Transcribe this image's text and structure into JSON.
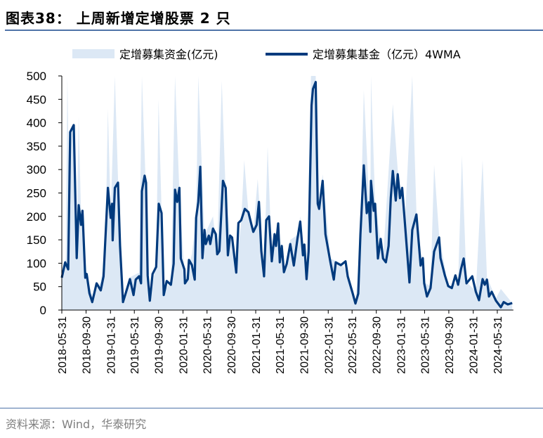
{
  "title": "图表38：  上周新增定增股票 2 只",
  "source": "资料来源：Wind，华泰研究",
  "chart_data": {
    "type": "area+line",
    "title": "上周新增定增股票 2 只",
    "xlabel": "",
    "ylabel": "",
    "ylim": [
      0,
      500
    ],
    "yticks": [
      0,
      50,
      100,
      150,
      200,
      250,
      300,
      350,
      400,
      450,
      500
    ],
    "xlim": [
      "2018-05-31",
      "2024-08-20"
    ],
    "xticks": [
      "2018-05-31",
      "2018-09-30",
      "2019-01-31",
      "2019-05-31",
      "2019-09-30",
      "2020-01-31",
      "2020-05-31",
      "2020-09-30",
      "2021-01-31",
      "2021-05-31",
      "2021-09-30",
      "2022-01-31",
      "2022-05-31",
      "2022-09-30",
      "2023-01-31",
      "2023-05-31",
      "2023-09-30",
      "2024-01-31",
      "2024-05-31"
    ],
    "grid": false,
    "legend_position": "top",
    "series": [
      {
        "name": "定增募集资金(亿元)",
        "type": "area",
        "color": "#dce8f5",
        "points": [
          [
            "2018-05-31",
            60
          ],
          [
            "2018-06-20",
            110
          ],
          [
            "2018-06-28",
            500
          ],
          [
            "2018-07-05",
            300
          ],
          [
            "2018-07-25",
            400
          ],
          [
            "2018-08-14",
            150
          ],
          [
            "2018-08-24",
            415
          ],
          [
            "2018-09-05",
            200
          ],
          [
            "2018-09-26",
            90
          ],
          [
            "2018-10-31",
            30
          ],
          [
            "2018-12-13",
            60
          ],
          [
            "2019-01-05",
            120
          ],
          [
            "2019-01-18",
            430
          ],
          [
            "2019-02-01",
            200
          ],
          [
            "2019-02-22",
            500
          ],
          [
            "2019-03-10",
            280
          ],
          [
            "2019-04-04",
            20
          ],
          [
            "2019-05-09",
            70
          ],
          [
            "2019-06-24",
            80
          ],
          [
            "2019-07-08",
            500
          ],
          [
            "2019-07-29",
            250
          ],
          [
            "2019-08-17",
            20
          ],
          [
            "2019-09-18",
            100
          ],
          [
            "2019-09-30",
            450
          ],
          [
            "2019-10-26",
            40
          ],
          [
            "2019-12-01",
            60
          ],
          [
            "2019-12-22",
            500
          ],
          [
            "2020-01-13",
            250
          ],
          [
            "2020-02-10",
            60
          ],
          [
            "2020-03-16",
            120
          ],
          [
            "2020-04-06",
            200
          ],
          [
            "2020-04-17",
            500
          ],
          [
            "2020-05-18",
            160
          ],
          [
            "2020-06-30",
            200
          ],
          [
            "2020-07-21",
            120
          ],
          [
            "2020-08-13",
            490
          ],
          [
            "2020-09-02",
            250
          ],
          [
            "2020-09-24",
            160
          ],
          [
            "2020-10-25",
            90
          ],
          [
            "2020-11-19",
            190
          ],
          [
            "2020-12-04",
            320
          ],
          [
            "2020-12-25",
            210
          ],
          [
            "2021-01-19",
            170
          ],
          [
            "2021-02-10",
            280
          ],
          [
            "2021-03-14",
            80
          ],
          [
            "2021-04-01",
            350
          ],
          [
            "2021-04-22",
            110
          ],
          [
            "2021-05-24",
            190
          ],
          [
            "2021-06-22",
            80
          ],
          [
            "2021-07-24",
            150
          ],
          [
            "2021-08-29",
            160
          ],
          [
            "2021-09-12",
            200
          ],
          [
            "2021-10-14",
            60
          ],
          [
            "2021-11-05",
            500
          ],
          [
            "2021-11-29",
            500
          ],
          [
            "2021-12-16",
            220
          ],
          [
            "2022-01-03",
            290
          ],
          [
            "2022-02-11",
            110
          ],
          [
            "2022-04-04",
            100
          ],
          [
            "2022-05-09",
            80
          ],
          [
            "2022-06-17",
            10
          ],
          [
            "2022-07-12",
            160
          ],
          [
            "2022-07-29",
            470
          ],
          [
            "2022-08-31",
            180
          ],
          [
            "2022-09-03",
            500
          ],
          [
            "2022-09-24",
            230
          ],
          [
            "2022-11-03",
            110
          ],
          [
            "2022-12-22",
            440
          ],
          [
            "2023-01-16",
            300
          ],
          [
            "2023-02-21",
            190
          ],
          [
            "2023-03-30",
            500
          ],
          [
            "2023-04-20",
            210
          ],
          [
            "2023-05-29",
            60
          ],
          [
            "2023-06-30",
            50
          ],
          [
            "2023-07-18",
            310
          ],
          [
            "2023-08-12",
            160
          ],
          [
            "2023-09-27",
            50
          ],
          [
            "2023-11-16",
            60
          ],
          [
            "2023-12-05",
            330
          ],
          [
            "2023-12-28",
            60
          ],
          [
            "2024-02-13",
            40
          ],
          [
            "2024-03-18",
            320
          ],
          [
            "2024-04-09",
            70
          ],
          [
            "2024-05-24",
            25
          ],
          [
            "2024-06-18",
            45
          ],
          [
            "2024-08-14",
            15
          ]
        ]
      },
      {
        "name": "定增募集基金（亿元）4WMA",
        "type": "line",
        "color": "#003a7d",
        "points": [
          [
            "2018-05-31",
            69
          ],
          [
            "2018-06-17",
            102
          ],
          [
            "2018-07-02",
            87
          ],
          [
            "2018-07-12",
            380
          ],
          [
            "2018-07-30",
            395
          ],
          [
            "2018-08-14",
            111
          ],
          [
            "2018-08-24",
            224
          ],
          [
            "2018-09-05",
            182
          ],
          [
            "2018-09-12",
            212
          ],
          [
            "2018-09-26",
            69
          ],
          [
            "2018-10-03",
            77
          ],
          [
            "2018-10-17",
            36
          ],
          [
            "2018-10-31",
            17
          ],
          [
            "2018-11-22",
            57
          ],
          [
            "2018-12-13",
            42
          ],
          [
            "2018-12-27",
            72
          ],
          [
            "2019-01-18",
            261
          ],
          [
            "2019-02-01",
            197
          ],
          [
            "2019-02-08",
            227
          ],
          [
            "2019-02-11",
            149
          ],
          [
            "2019-02-22",
            261
          ],
          [
            "2019-03-10",
            272
          ],
          [
            "2019-03-20",
            137
          ],
          [
            "2019-04-04",
            17
          ],
          [
            "2019-04-22",
            42
          ],
          [
            "2019-05-09",
            66
          ],
          [
            "2019-05-27",
            32
          ],
          [
            "2019-06-07",
            65
          ],
          [
            "2019-06-24",
            72
          ],
          [
            "2019-07-04",
            57
          ],
          [
            "2019-07-08",
            254
          ],
          [
            "2019-07-22",
            287
          ],
          [
            "2019-07-29",
            272
          ],
          [
            "2019-08-06",
            74
          ],
          [
            "2019-08-17",
            20
          ],
          [
            "2019-08-31",
            77
          ],
          [
            "2019-09-18",
            92
          ],
          [
            "2019-10-01",
            227
          ],
          [
            "2019-10-15",
            207
          ],
          [
            "2019-10-26",
            32
          ],
          [
            "2019-11-10",
            62
          ],
          [
            "2019-12-01",
            54
          ],
          [
            "2019-12-15",
            99
          ],
          [
            "2019-12-22",
            257
          ],
          [
            "2020-01-02",
            231
          ],
          [
            "2020-01-13",
            261
          ],
          [
            "2020-01-20",
            110
          ],
          [
            "2020-02-07",
            87
          ],
          [
            "2020-02-10",
            57
          ],
          [
            "2020-02-24",
            66
          ],
          [
            "2020-03-01",
            107
          ],
          [
            "2020-03-16",
            96
          ],
          [
            "2020-03-30",
            65
          ],
          [
            "2020-04-06",
            197
          ],
          [
            "2020-04-17",
            231
          ],
          [
            "2020-04-27",
            306
          ],
          [
            "2020-05-08",
            111
          ],
          [
            "2020-05-18",
            171
          ],
          [
            "2020-05-25",
            141
          ],
          [
            "2020-06-09",
            159
          ],
          [
            "2020-06-16",
            141
          ],
          [
            "2020-06-30",
            174
          ],
          [
            "2020-07-14",
            162
          ],
          [
            "2020-07-21",
            119
          ],
          [
            "2020-08-01",
            126
          ],
          [
            "2020-08-19",
            276
          ],
          [
            "2020-09-02",
            261
          ],
          [
            "2020-09-13",
            117
          ],
          [
            "2020-09-24",
            159
          ],
          [
            "2020-10-04",
            155
          ],
          [
            "2020-10-25",
            80
          ],
          [
            "2020-11-05",
            186
          ],
          [
            "2020-11-19",
            192
          ],
          [
            "2020-12-07",
            216
          ],
          [
            "2020-12-25",
            209
          ],
          [
            "2021-01-08",
            185
          ],
          [
            "2021-01-19",
            167
          ],
          [
            "2021-02-05",
            182
          ],
          [
            "2021-02-16",
            231
          ],
          [
            "2021-02-28",
            126
          ],
          [
            "2021-03-14",
            72
          ],
          [
            "2021-03-25",
            192
          ],
          [
            "2021-04-08",
            200
          ],
          [
            "2021-04-22",
            104
          ],
          [
            "2021-05-06",
            162
          ],
          [
            "2021-05-13",
            137
          ],
          [
            "2021-05-24",
            185
          ],
          [
            "2021-06-01",
            102
          ],
          [
            "2021-06-11",
            137
          ],
          [
            "2021-06-22",
            81
          ],
          [
            "2021-07-06",
            99
          ],
          [
            "2021-07-24",
            141
          ],
          [
            "2021-08-11",
            95
          ],
          [
            "2021-08-29",
            152
          ],
          [
            "2021-09-12",
            189
          ],
          [
            "2021-09-26",
            117
          ],
          [
            "2021-10-03",
            140
          ],
          [
            "2021-10-14",
            66
          ],
          [
            "2021-10-24",
            125
          ],
          [
            "2021-11-08",
            437
          ],
          [
            "2021-11-15",
            472
          ],
          [
            "2021-11-29",
            487
          ],
          [
            "2021-12-09",
            227
          ],
          [
            "2021-12-16",
            216
          ],
          [
            "2022-01-03",
            276
          ],
          [
            "2022-01-17",
            162
          ],
          [
            "2022-02-11",
            102
          ],
          [
            "2022-02-28",
            65
          ],
          [
            "2022-03-10",
            102
          ],
          [
            "2022-04-04",
            96
          ],
          [
            "2022-04-28",
            104
          ],
          [
            "2022-05-09",
            72
          ],
          [
            "2022-06-03",
            36
          ],
          [
            "2022-06-17",
            14
          ],
          [
            "2022-07-01",
            35
          ],
          [
            "2022-07-12",
            162
          ],
          [
            "2022-07-29",
            309
          ],
          [
            "2022-08-13",
            207
          ],
          [
            "2022-08-23",
            230
          ],
          [
            "2022-08-31",
            167
          ],
          [
            "2022-09-03",
            276
          ],
          [
            "2022-09-17",
            212
          ],
          [
            "2022-09-24",
            227
          ],
          [
            "2022-10-08",
            110
          ],
          [
            "2022-10-22",
            152
          ],
          [
            "2022-11-03",
            110
          ],
          [
            "2022-11-17",
            102
          ],
          [
            "2022-12-01",
            137
          ],
          [
            "2022-12-12",
            239
          ],
          [
            "2022-12-22",
            297
          ],
          [
            "2023-01-06",
            234
          ],
          [
            "2023-01-16",
            290
          ],
          [
            "2023-01-27",
            239
          ],
          [
            "2023-02-07",
            261
          ],
          [
            "2023-02-21",
            186
          ],
          [
            "2023-03-16",
            59
          ],
          [
            "2023-03-30",
            171
          ],
          [
            "2023-04-20",
            204
          ],
          [
            "2023-05-11",
            95
          ],
          [
            "2023-05-22",
            111
          ],
          [
            "2023-05-29",
            57
          ],
          [
            "2023-06-12",
            29
          ],
          [
            "2023-06-30",
            47
          ],
          [
            "2023-07-18",
            125
          ],
          [
            "2023-08-12",
            155
          ],
          [
            "2023-08-19",
            111
          ],
          [
            "2023-09-10",
            74
          ],
          [
            "2023-09-27",
            51
          ],
          [
            "2023-10-15",
            47
          ],
          [
            "2023-11-02",
            74
          ],
          [
            "2023-11-16",
            54
          ],
          [
            "2023-11-30",
            87
          ],
          [
            "2023-12-14",
            110
          ],
          [
            "2023-12-28",
            57
          ],
          [
            "2024-01-26",
            72
          ],
          [
            "2024-02-13",
            39
          ],
          [
            "2024-02-29",
            21
          ],
          [
            "2024-03-18",
            66
          ],
          [
            "2024-03-29",
            54
          ],
          [
            "2024-04-09",
            65
          ],
          [
            "2024-04-19",
            29
          ],
          [
            "2024-05-03",
            39
          ],
          [
            "2024-05-24",
            20
          ],
          [
            "2024-06-18",
            6
          ],
          [
            "2024-07-02",
            17
          ],
          [
            "2024-07-23",
            12
          ],
          [
            "2024-08-14",
            15
          ]
        ]
      }
    ]
  }
}
